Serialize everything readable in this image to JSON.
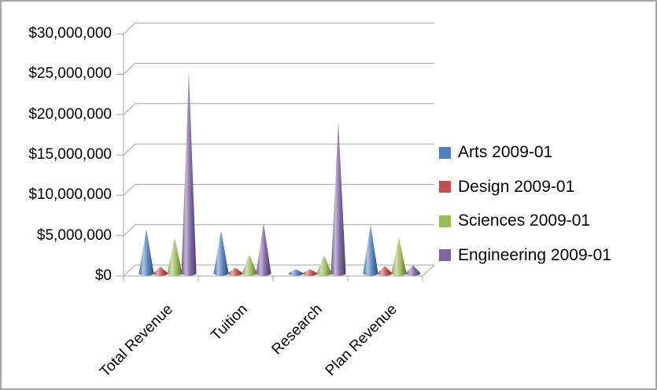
{
  "window": {
    "background": "#FFFFFF",
    "border_color": "#A6A6A6"
  },
  "chart_data": {
    "type": "bar",
    "subtype": "3d-cone-clustered",
    "title": "",
    "xlabel": "",
    "ylabel": "",
    "categories": [
      "Total Revenue",
      "Tuition",
      "Research",
      "Plan Revenue"
    ],
    "series": [
      {
        "name": "Arts 2009-01",
        "color": "#4F81BD",
        "values": [
          5500000,
          5300000,
          500000,
          6000000
        ]
      },
      {
        "name": "Design 2009-01",
        "color": "#C0504D",
        "values": [
          800000,
          700000,
          500000,
          900000
        ]
      },
      {
        "name": "Sciences 2009-01",
        "color": "#9BBB59",
        "values": [
          4400000,
          2300000,
          2200000,
          4400000
        ]
      },
      {
        "name": "Engineering 2009-01",
        "color": "#8064A2",
        "values": [
          25000000,
          6200000,
          18800000,
          1000000
        ]
      }
    ],
    "ylim": [
      0,
      30000000
    ],
    "ytick_step": 5000000,
    "ytick_labels": [
      "$0",
      "$5,000,000",
      "$10,000,000",
      "$15,000,000",
      "$20,000,000",
      "$25,000,000",
      "$30,000,000"
    ],
    "grid": true,
    "gridline_color": "#A6A6A6",
    "axis_color": "#A6A6A6",
    "text_color": "#000000",
    "legend_position": "right"
  }
}
